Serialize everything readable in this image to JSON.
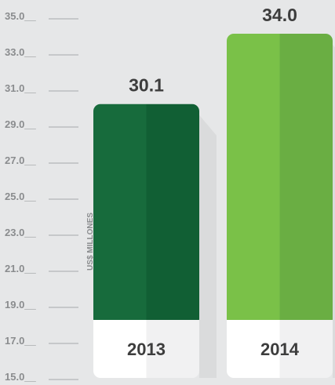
{
  "chart_data": {
    "type": "bar",
    "categories": [
      "2013",
      "2014"
    ],
    "values": [
      30.1,
      34.0
    ],
    "value_labels": [
      "30.1",
      "34.0"
    ],
    "ylabel": "US$ MILLONES",
    "ylim": [
      15.0,
      35.0
    ],
    "yticks": [
      "35.0",
      "33.0",
      "31.0",
      "29.0",
      "27.0",
      "25.0",
      "23.0",
      "21.0",
      "19.0",
      "17.0",
      "15.0"
    ],
    "tick_suffix": "__",
    "grid": false,
    "colors": {
      "2013": "#13673a",
      "2014": "#72bd45",
      "background": "#e6e7e8",
      "tick_line": "#a7a9ac"
    }
  }
}
